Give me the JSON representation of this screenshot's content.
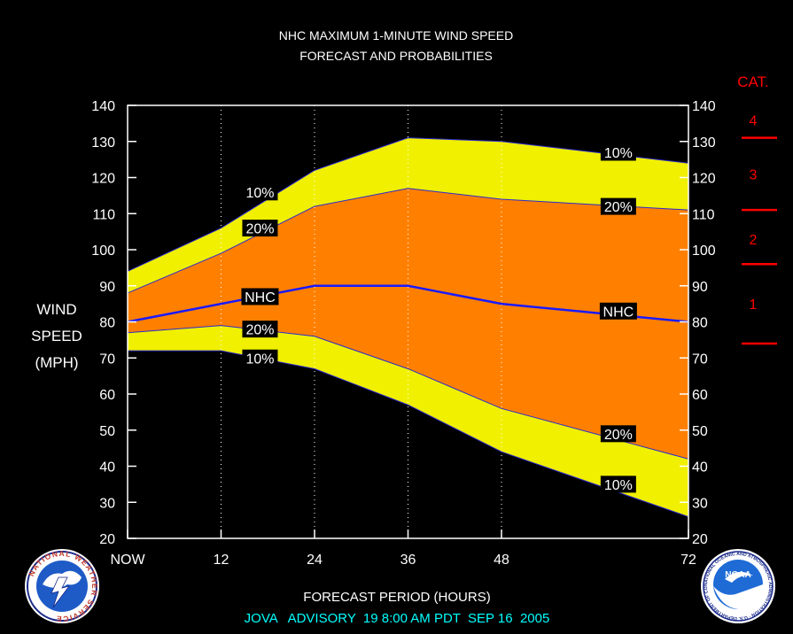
{
  "header": {
    "title_line1": "NHC MAXIMUM 1-MINUTE WIND SPEED",
    "title_line2": "FORECAST AND PROBABILITIES"
  },
  "footer": {
    "xlabel": "FORECAST PERIOD (HOURS)",
    "advisory": "JOVA   ADVISORY  19 8:00 AM PDT  SEP 16  2005"
  },
  "ylabel_lines": [
    "WIND",
    "SPEED",
    "(MPH)"
  ],
  "category_scale": {
    "title": "CAT.",
    "color": "#ff0000",
    "boundaries": [
      74,
      96,
      111,
      131
    ],
    "labels": [
      {
        "text": "1",
        "y": 85
      },
      {
        "text": "2",
        "y": 103
      },
      {
        "text": "3",
        "y": 121
      },
      {
        "text": "4",
        "y": 136
      }
    ]
  },
  "logos": {
    "left_text": "NATIONAL WEATHER SERVICE",
    "right_text": "NOAA",
    "right_ring_text": "NATIONAL OCEANIC AND ATMOSPHERIC ADMINISTRATION · U.S. DEPARTMENT OF COMMERCE"
  },
  "chart_data": {
    "type": "area",
    "xlabel": "FORECAST PERIOD (HOURS)",
    "ylabel": "WIND SPEED (MPH)",
    "xlim": [
      0,
      72
    ],
    "ylim": [
      20,
      140
    ],
    "x_ticks": [
      {
        "value": 0,
        "label": "NOW"
      },
      {
        "value": 12,
        "label": "12"
      },
      {
        "value": 24,
        "label": "24"
      },
      {
        "value": 36,
        "label": "36"
      },
      {
        "value": 48,
        "label": "48"
      },
      {
        "value": 72,
        "label": "72"
      }
    ],
    "y_ticks": [
      20,
      30,
      40,
      50,
      60,
      70,
      80,
      90,
      100,
      110,
      120,
      130,
      140
    ],
    "grid_x": [
      12,
      24,
      36,
      48
    ],
    "x": [
      0,
      12,
      24,
      36,
      48,
      72
    ],
    "series": [
      {
        "name": "10%",
        "role": "upper",
        "values": [
          94,
          106,
          122,
          131,
          130,
          124
        ],
        "color": "#f0f000"
      },
      {
        "name": "20%",
        "role": "upper",
        "values": [
          88,
          99,
          112,
          117,
          114,
          111
        ],
        "color": "#ff8000"
      },
      {
        "name": "NHC",
        "role": "forecast",
        "values": [
          80,
          85,
          90,
          90,
          85,
          80
        ],
        "color": "#1a1aff"
      },
      {
        "name": "20%",
        "role": "lower",
        "values": [
          77,
          79,
          76,
          67,
          56,
          42
        ],
        "color": "#ff8000"
      },
      {
        "name": "10%",
        "role": "lower",
        "values": [
          72,
          72,
          67,
          57,
          44,
          26
        ],
        "color": "#f0f000"
      }
    ],
    "labels": [
      {
        "text": "10%",
        "x": 17,
        "y": 116
      },
      {
        "text": "20%",
        "x": 17,
        "y": 106
      },
      {
        "text": "NHC",
        "x": 17,
        "y": 87
      },
      {
        "text": "20%",
        "x": 17,
        "y": 78
      },
      {
        "text": "10%",
        "x": 17,
        "y": 70
      },
      {
        "text": "10%",
        "x": 63,
        "y": 127
      },
      {
        "text": "20%",
        "x": 63,
        "y": 112
      },
      {
        "text": "NHC",
        "x": 63,
        "y": 83
      },
      {
        "text": "20%",
        "x": 63,
        "y": 49
      },
      {
        "text": "10%",
        "x": 63,
        "y": 35
      }
    ]
  }
}
